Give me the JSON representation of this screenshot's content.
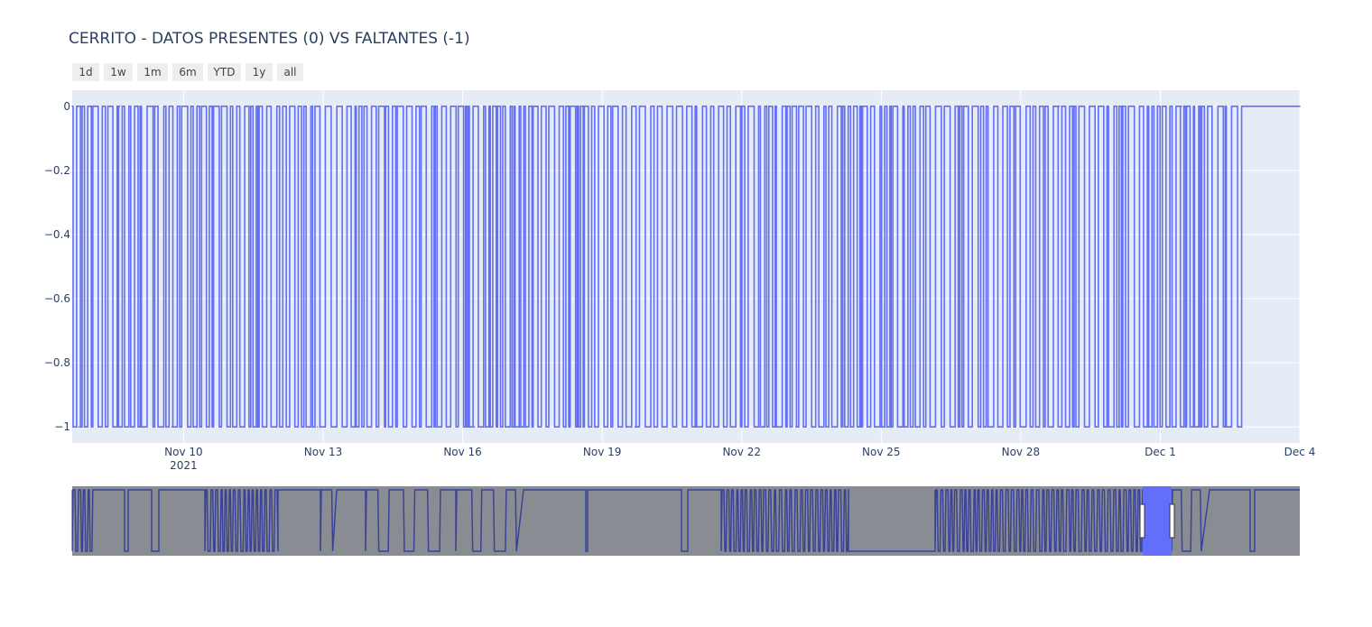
{
  "chart_data": {
    "type": "line",
    "title": "CERRITO - DATOS PRESENTES (0) VS FALTANTES (-1)",
    "xlabel": "",
    "ylabel": "",
    "x_range": [
      "2021-11-07T14:30:00",
      "2021-12-04T00:00:00"
    ],
    "ylim": [
      -1.05,
      0.05
    ],
    "y_ticks": [
      {
        "value": 0,
        "label": "0"
      },
      {
        "value": -0.2,
        "label": "−0.2"
      },
      {
        "value": -0.4,
        "label": "−0.4"
      },
      {
        "value": -0.6,
        "label": "−0.6"
      },
      {
        "value": -0.8,
        "label": "−0.8"
      },
      {
        "value": -1,
        "label": "−1"
      }
    ],
    "x_ticks": [
      {
        "value": "2021-11-10",
        "label": "Nov 10",
        "sublabel": "2021"
      },
      {
        "value": "2021-11-13",
        "label": "Nov 13"
      },
      {
        "value": "2021-11-16",
        "label": "Nov 16"
      },
      {
        "value": "2021-11-19",
        "label": "Nov 19"
      },
      {
        "value": "2021-11-22",
        "label": "Nov 22"
      },
      {
        "value": "2021-11-25",
        "label": "Nov 25"
      },
      {
        "value": "2021-11-28",
        "label": "Nov 28"
      },
      {
        "value": "2021-12-01",
        "label": "Dec 1"
      },
      {
        "value": "2021-12-04",
        "label": "Dec 4"
      }
    ],
    "series": [
      {
        "values_description": "Station data present (0) vs missing (-1); rapid alternation between 0 and -1 from Nov 7 to Dec 2, constant 0 afterwards",
        "color": "#636efa",
        "x": [
          "2021-11-07T14:30:00",
          "2021-11-07T18:00:00",
          "2021-11-08T02:00:00",
          "2021-11-08T08:00:00",
          "2021-11-08T15:00:00",
          "2021-11-09T01:00:00",
          "2021-11-09T09:00:00",
          "2021-11-09T18:00:00",
          "2021-11-10T04:00:00",
          "2021-11-10T12:00:00",
          "2021-11-10T22:00:00",
          "2021-11-11T07:00:00",
          "2021-11-11T16:00:00",
          "2021-11-12T02:00:00",
          "2021-11-12T12:00:00",
          "2021-11-12T21:00:00",
          "2021-11-13T08:00:00",
          "2021-11-13T18:00:00",
          "2021-11-14T05:00:00",
          "2021-11-14T14:00:00",
          "2021-11-15T00:00:00",
          "2021-11-15T10:00:00",
          "2021-11-15T20:00:00",
          "2021-11-16T06:00:00",
          "2021-11-16T16:00:00",
          "2021-11-17T03:00:00",
          "2021-11-17T13:00:00",
          "2021-11-18T00:00:00",
          "2021-11-18T10:00:00",
          "2021-11-18T20:00:00",
          "2021-11-19T06:00:00",
          "2021-11-19T17:00:00",
          "2021-11-20T03:00:00",
          "2021-11-20T13:00:00",
          "2021-11-21T00:00:00",
          "2021-11-21T10:00:00",
          "2021-11-21T21:00:00",
          "2021-11-22T07:00:00",
          "2021-11-22T18:00:00",
          "2021-11-23T04:00:00",
          "2021-11-23T14:00:00",
          "2021-11-24T01:00:00",
          "2021-11-24T11:00:00",
          "2021-11-24T22:00:00",
          "2021-11-25T08:00:00",
          "2021-11-25T19:00:00",
          "2021-11-26T05:00:00",
          "2021-11-26T16:00:00",
          "2021-11-27T02:00:00",
          "2021-11-27T12:00:00",
          "2021-11-27T23:00:00",
          "2021-11-28T09:00:00",
          "2021-11-28T20:00:00",
          "2021-11-29T06:00:00",
          "2021-11-29T17:00:00",
          "2021-11-30T03:00:00",
          "2021-11-30T14:00:00",
          "2021-12-01T00:00:00",
          "2021-12-01T11:00:00",
          "2021-12-01T21:00:00",
          "2021-12-02T08:00:00",
          "2021-12-02T18:00:00",
          "2021-12-03T12:00:00",
          "2021-12-04T00:00:00"
        ],
        "y": [
          0,
          -1,
          0,
          -1,
          0,
          -1,
          0,
          -1,
          0,
          -1,
          0,
          -1,
          0,
          -1,
          0,
          -1,
          0,
          -1,
          0,
          -1,
          0,
          -1,
          0,
          -1,
          0,
          -1,
          0,
          -1,
          0,
          -1,
          0,
          -1,
          0,
          -1,
          0,
          -1,
          0,
          -1,
          0,
          -1,
          0,
          -1,
          0,
          -1,
          0,
          -1,
          0,
          -1,
          0,
          -1,
          0,
          -1,
          0,
          -1,
          0,
          -1,
          0,
          -1,
          0,
          -1,
          0,
          -1,
          0,
          0
        ]
      }
    ],
    "grid": true,
    "legend": "none",
    "range_slider": true,
    "range_selector_buttons": [
      "1d",
      "1w",
      "1m",
      "6m",
      "YTD",
      "1y",
      "all"
    ],
    "rangeslider_overview": "compressed overview of the full period (several months) with the currently selected window highlighted near the right end"
  },
  "colors": {
    "plot_bg": "#e5ecf6",
    "line": "#636efa",
    "grid": "#ffffff",
    "button_bg": "#eeeeee",
    "slider_mask": "#8a8d94",
    "slider_line": "#3c4193"
  }
}
